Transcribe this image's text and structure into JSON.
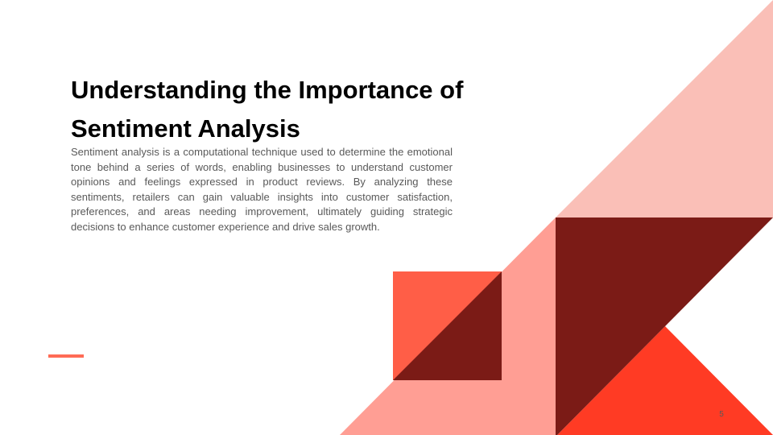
{
  "slide": {
    "title": "Understanding the Importance of Sentiment Analysis",
    "body": "Sentiment analysis is a computational technique used to determine the emotional tone behind a series of words, enabling businesses to understand customer opinions and feelings expressed in product reviews. By analyzing these sentiments, retailers can gain valuable insights into customer satisfaction, preferences, and areas needing improvement, ultimately guiding strategic decisions to enhance customer experience and drive sales growth.",
    "page_number": "5"
  },
  "colors": {
    "pale_pink": "#fabfb7",
    "light_salmon": "#ff9e94",
    "coral": "#ff5e47",
    "red": "#ff3b24",
    "dark_maroon": "#7b1b16",
    "accent": "#ff6b55",
    "body_text": "#595959",
    "title_text": "#000000"
  }
}
